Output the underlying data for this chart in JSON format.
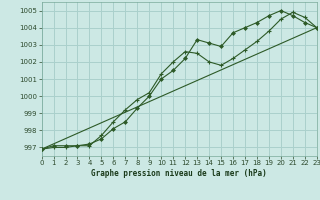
{
  "title": "Graphe pression niveau de la mer (hPa)",
  "background_color": "#cce8e4",
  "grid_color": "#aad0cc",
  "line_color": "#2d5a27",
  "xlim": [
    0,
    23
  ],
  "ylim": [
    996.5,
    1005.5
  ],
  "xticks": [
    0,
    1,
    2,
    3,
    4,
    5,
    6,
    7,
    8,
    9,
    10,
    11,
    12,
    13,
    14,
    15,
    16,
    17,
    18,
    19,
    20,
    21,
    22,
    23
  ],
  "yticks": [
    997,
    998,
    999,
    1000,
    1001,
    1002,
    1003,
    1004,
    1005
  ],
  "series1_x": [
    0,
    1,
    2,
    3,
    4,
    5,
    6,
    7,
    8,
    9,
    10,
    11,
    12,
    13,
    14,
    15,
    16,
    17,
    18,
    19,
    20,
    21,
    22,
    23
  ],
  "series1_y": [
    996.9,
    997.1,
    997.1,
    997.1,
    997.2,
    997.5,
    998.1,
    998.5,
    999.3,
    1000.0,
    1001.0,
    1001.5,
    1002.2,
    1003.3,
    1003.1,
    1002.9,
    1003.7,
    1004.0,
    1004.3,
    1004.7,
    1005.0,
    1004.7,
    1004.3,
    1004.0
  ],
  "series2_x": [
    0,
    1,
    2,
    3,
    4,
    5,
    6,
    7,
    8,
    9,
    10,
    11,
    12,
    13,
    14,
    15,
    16,
    17,
    18,
    19,
    20,
    21,
    22,
    23
  ],
  "series2_y": [
    996.9,
    997.0,
    997.0,
    997.1,
    997.1,
    997.7,
    998.5,
    999.2,
    999.8,
    1000.2,
    1001.3,
    1002.0,
    1002.6,
    1002.5,
    1002.0,
    1001.8,
    1002.2,
    1002.7,
    1003.2,
    1003.8,
    1004.5,
    1004.9,
    1004.6,
    1004.0
  ],
  "series3_x": [
    0,
    23
  ],
  "series3_y": [
    996.9,
    1004.0
  ]
}
